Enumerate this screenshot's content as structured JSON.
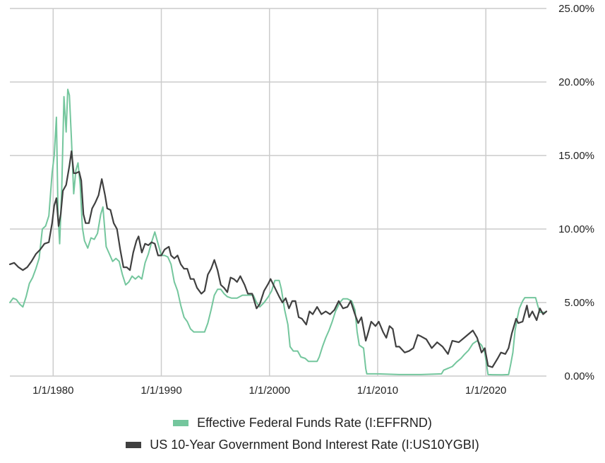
{
  "chart_data": {
    "type": "line",
    "title": "",
    "xlabel": "",
    "ylabel": "",
    "x_range": [
      1976.0,
      2025.6
    ],
    "ylim": [
      0,
      25
    ],
    "grid": true,
    "legend_position": "bottom",
    "x_ticks": [
      {
        "value": 1980,
        "label": "1/1/1980"
      },
      {
        "value": 1990,
        "label": "1/1/1990"
      },
      {
        "value": 2000,
        "label": "1/1/2000"
      },
      {
        "value": 2010,
        "label": "1/1/2010"
      },
      {
        "value": 2020,
        "label": "1/1/2020"
      }
    ],
    "y_ticks": [
      {
        "value": 0,
        "label": "0.00%"
      },
      {
        "value": 5,
        "label": "5.00%"
      },
      {
        "value": 10,
        "label": "10.00%"
      },
      {
        "value": 15,
        "label": "15.00%"
      },
      {
        "value": 20,
        "label": "20.00%"
      },
      {
        "value": 25,
        "label": "25.00%"
      }
    ],
    "series": [
      {
        "name": "Effective Federal Funds Rate (I:EFFRND)",
        "color": "#74c69d",
        "points": [
          [
            1976.0,
            5.0
          ],
          [
            1976.3,
            5.3
          ],
          [
            1976.6,
            5.2
          ],
          [
            1976.9,
            4.9
          ],
          [
            1977.2,
            4.7
          ],
          [
            1977.5,
            5.4
          ],
          [
            1977.8,
            6.3
          ],
          [
            1978.1,
            6.7
          ],
          [
            1978.4,
            7.3
          ],
          [
            1978.7,
            8.0
          ],
          [
            1979.0,
            10.0
          ],
          [
            1979.3,
            10.2
          ],
          [
            1979.6,
            10.9
          ],
          [
            1979.9,
            13.8
          ],
          [
            1980.1,
            15.0
          ],
          [
            1980.3,
            17.6
          ],
          [
            1980.45,
            11.0
          ],
          [
            1980.6,
            9.0
          ],
          [
            1980.8,
            12.8
          ],
          [
            1981.0,
            19.0
          ],
          [
            1981.2,
            16.6
          ],
          [
            1981.35,
            19.5
          ],
          [
            1981.5,
            19.1
          ],
          [
            1981.7,
            16.0
          ],
          [
            1981.9,
            12.4
          ],
          [
            1982.1,
            14.0
          ],
          [
            1982.3,
            14.5
          ],
          [
            1982.5,
            13.0
          ],
          [
            1982.7,
            10.1
          ],
          [
            1982.9,
            9.2
          ],
          [
            1983.2,
            8.7
          ],
          [
            1983.5,
            9.4
          ],
          [
            1983.8,
            9.3
          ],
          [
            1984.1,
            9.7
          ],
          [
            1984.4,
            11.0
          ],
          [
            1984.6,
            11.5
          ],
          [
            1984.9,
            8.8
          ],
          [
            1985.2,
            8.3
          ],
          [
            1985.5,
            7.8
          ],
          [
            1985.8,
            8.0
          ],
          [
            1986.1,
            7.8
          ],
          [
            1986.4,
            6.9
          ],
          [
            1986.7,
            6.2
          ],
          [
            1987.0,
            6.4
          ],
          [
            1987.3,
            6.8
          ],
          [
            1987.6,
            6.6
          ],
          [
            1987.9,
            6.8
          ],
          [
            1988.2,
            6.6
          ],
          [
            1988.5,
            7.7
          ],
          [
            1988.8,
            8.3
          ],
          [
            1989.1,
            9.1
          ],
          [
            1989.4,
            9.8
          ],
          [
            1989.7,
            9.0
          ],
          [
            1990.0,
            8.2
          ],
          [
            1990.3,
            8.2
          ],
          [
            1990.6,
            8.1
          ],
          [
            1990.9,
            7.6
          ],
          [
            1991.2,
            6.4
          ],
          [
            1991.5,
            5.8
          ],
          [
            1991.8,
            4.8
          ],
          [
            1992.1,
            4.0
          ],
          [
            1992.4,
            3.7
          ],
          [
            1992.7,
            3.2
          ],
          [
            1993.0,
            3.0
          ],
          [
            1993.5,
            3.0
          ],
          [
            1994.0,
            3.0
          ],
          [
            1994.3,
            3.6
          ],
          [
            1994.6,
            4.5
          ],
          [
            1994.9,
            5.5
          ],
          [
            1995.2,
            5.9
          ],
          [
            1995.5,
            5.9
          ],
          [
            1995.8,
            5.6
          ],
          [
            1996.1,
            5.4
          ],
          [
            1996.5,
            5.3
          ],
          [
            1997.0,
            5.3
          ],
          [
            1997.5,
            5.5
          ],
          [
            1998.0,
            5.5
          ],
          [
            1998.5,
            5.5
          ],
          [
            1998.8,
            5.0
          ],
          [
            1999.1,
            4.7
          ],
          [
            1999.5,
            5.0
          ],
          [
            1999.9,
            5.4
          ],
          [
            2000.2,
            5.8
          ],
          [
            2000.5,
            6.5
          ],
          [
            2000.9,
            6.5
          ],
          [
            2001.1,
            5.9
          ],
          [
            2001.4,
            4.5
          ],
          [
            2001.7,
            3.5
          ],
          [
            2001.9,
            2.0
          ],
          [
            2002.2,
            1.7
          ],
          [
            2002.6,
            1.7
          ],
          [
            2002.9,
            1.3
          ],
          [
            2003.3,
            1.2
          ],
          [
            2003.6,
            1.0
          ],
          [
            2004.0,
            1.0
          ],
          [
            2004.4,
            1.0
          ],
          [
            2004.6,
            1.3
          ],
          [
            2004.9,
            2.0
          ],
          [
            2005.2,
            2.6
          ],
          [
            2005.5,
            3.1
          ],
          [
            2005.8,
            3.7
          ],
          [
            2006.1,
            4.4
          ],
          [
            2006.5,
            5.0
          ],
          [
            2006.8,
            5.25
          ],
          [
            2007.2,
            5.25
          ],
          [
            2007.6,
            5.1
          ],
          [
            2007.9,
            4.5
          ],
          [
            2008.1,
            3.0
          ],
          [
            2008.3,
            2.1
          ],
          [
            2008.7,
            1.9
          ],
          [
            2008.9,
            0.5
          ],
          [
            2009.0,
            0.15
          ],
          [
            2010.0,
            0.15
          ],
          [
            2012.0,
            0.1
          ],
          [
            2014.0,
            0.1
          ],
          [
            2015.9,
            0.15
          ],
          [
            2016.1,
            0.4
          ],
          [
            2016.9,
            0.65
          ],
          [
            2017.3,
            0.95
          ],
          [
            2017.7,
            1.2
          ],
          [
            2018.0,
            1.45
          ],
          [
            2018.4,
            1.75
          ],
          [
            2018.8,
            2.2
          ],
          [
            2019.2,
            2.4
          ],
          [
            2019.6,
            2.1
          ],
          [
            2019.9,
            1.6
          ],
          [
            2020.2,
            0.1
          ],
          [
            2020.6,
            0.09
          ],
          [
            2021.5,
            0.08
          ],
          [
            2022.1,
            0.1
          ],
          [
            2022.3,
            0.8
          ],
          [
            2022.5,
            1.6
          ],
          [
            2022.7,
            3.1
          ],
          [
            2022.9,
            3.9
          ],
          [
            2023.1,
            4.6
          ],
          [
            2023.4,
            5.1
          ],
          [
            2023.6,
            5.33
          ],
          [
            2024.0,
            5.33
          ],
          [
            2024.6,
            5.33
          ],
          [
            2024.8,
            4.8
          ],
          [
            2025.0,
            4.33
          ],
          [
            2025.5,
            4.33
          ]
        ]
      },
      {
        "name": "US 10-Year Government Bond Interest Rate (I:US10YGBI)",
        "color": "#404040",
        "points": [
          [
            1976.0,
            7.6
          ],
          [
            1976.4,
            7.7
          ],
          [
            1976.8,
            7.4
          ],
          [
            1977.2,
            7.2
          ],
          [
            1977.6,
            7.4
          ],
          [
            1978.0,
            7.8
          ],
          [
            1978.4,
            8.3
          ],
          [
            1978.8,
            8.6
          ],
          [
            1979.2,
            9.0
          ],
          [
            1979.6,
            9.1
          ],
          [
            1979.9,
            10.4
          ],
          [
            1980.1,
            11.6
          ],
          [
            1980.3,
            12.1
          ],
          [
            1980.5,
            10.2
          ],
          [
            1980.7,
            11.0
          ],
          [
            1980.9,
            12.6
          ],
          [
            1981.2,
            13.0
          ],
          [
            1981.5,
            14.3
          ],
          [
            1981.7,
            15.3
          ],
          [
            1981.9,
            13.8
          ],
          [
            1982.1,
            13.8
          ],
          [
            1982.4,
            13.9
          ],
          [
            1982.6,
            13.3
          ],
          [
            1982.8,
            11.0
          ],
          [
            1983.0,
            10.4
          ],
          [
            1983.3,
            10.4
          ],
          [
            1983.6,
            11.4
          ],
          [
            1983.9,
            11.8
          ],
          [
            1984.2,
            12.3
          ],
          [
            1984.5,
            13.4
          ],
          [
            1984.8,
            12.3
          ],
          [
            1985.0,
            11.4
          ],
          [
            1985.3,
            11.3
          ],
          [
            1985.6,
            10.4
          ],
          [
            1985.9,
            10.0
          ],
          [
            1986.2,
            8.6
          ],
          [
            1986.5,
            7.4
          ],
          [
            1986.8,
            7.4
          ],
          [
            1987.1,
            7.2
          ],
          [
            1987.4,
            8.4
          ],
          [
            1987.7,
            9.2
          ],
          [
            1987.9,
            9.5
          ],
          [
            1988.2,
            8.4
          ],
          [
            1988.5,
            9.0
          ],
          [
            1988.8,
            8.9
          ],
          [
            1989.1,
            9.1
          ],
          [
            1989.4,
            9.0
          ],
          [
            1989.7,
            8.2
          ],
          [
            1990.0,
            8.2
          ],
          [
            1990.3,
            8.6
          ],
          [
            1990.7,
            8.8
          ],
          [
            1990.9,
            8.2
          ],
          [
            1991.2,
            8.0
          ],
          [
            1991.5,
            8.2
          ],
          [
            1991.8,
            7.6
          ],
          [
            1992.1,
            7.3
          ],
          [
            1992.4,
            7.3
          ],
          [
            1992.7,
            6.6
          ],
          [
            1993.0,
            6.6
          ],
          [
            1993.3,
            6.0
          ],
          [
            1993.7,
            5.6
          ],
          [
            1994.0,
            5.8
          ],
          [
            1994.3,
            6.9
          ],
          [
            1994.6,
            7.3
          ],
          [
            1994.9,
            7.9
          ],
          [
            1995.2,
            7.2
          ],
          [
            1995.5,
            6.2
          ],
          [
            1995.8,
            6.0
          ],
          [
            1996.1,
            5.7
          ],
          [
            1996.4,
            6.7
          ],
          [
            1996.7,
            6.6
          ],
          [
            1997.0,
            6.4
          ],
          [
            1997.3,
            6.8
          ],
          [
            1997.7,
            6.2
          ],
          [
            1998.0,
            5.6
          ],
          [
            1998.4,
            5.6
          ],
          [
            1998.8,
            4.6
          ],
          [
            1999.1,
            4.9
          ],
          [
            1999.5,
            5.8
          ],
          [
            1999.9,
            6.3
          ],
          [
            2000.1,
            6.6
          ],
          [
            2000.5,
            6.0
          ],
          [
            2000.9,
            5.4
          ],
          [
            2001.2,
            5.0
          ],
          [
            2001.5,
            5.3
          ],
          [
            2001.8,
            4.6
          ],
          [
            2002.1,
            5.1
          ],
          [
            2002.4,
            5.1
          ],
          [
            2002.7,
            4.0
          ],
          [
            2003.0,
            3.9
          ],
          [
            2003.4,
            3.5
          ],
          [
            2003.7,
            4.4
          ],
          [
            2004.0,
            4.2
          ],
          [
            2004.4,
            4.7
          ],
          [
            2004.8,
            4.2
          ],
          [
            2005.2,
            4.4
          ],
          [
            2005.6,
            4.2
          ],
          [
            2006.0,
            4.5
          ],
          [
            2006.4,
            5.1
          ],
          [
            2006.8,
            4.6
          ],
          [
            2007.2,
            4.7
          ],
          [
            2007.5,
            5.1
          ],
          [
            2007.9,
            4.2
          ],
          [
            2008.2,
            3.6
          ],
          [
            2008.5,
            4.0
          ],
          [
            2008.9,
            2.4
          ],
          [
            2009.1,
            2.9
          ],
          [
            2009.4,
            3.7
          ],
          [
            2009.8,
            3.4
          ],
          [
            2010.1,
            3.7
          ],
          [
            2010.5,
            3.0
          ],
          [
            2010.8,
            2.6
          ],
          [
            2011.1,
            3.4
          ],
          [
            2011.4,
            3.2
          ],
          [
            2011.7,
            2.0
          ],
          [
            2012.0,
            2.0
          ],
          [
            2012.5,
            1.6
          ],
          [
            2012.9,
            1.7
          ],
          [
            2013.3,
            1.9
          ],
          [
            2013.7,
            2.8
          ],
          [
            2014.0,
            2.7
          ],
          [
            2014.5,
            2.5
          ],
          [
            2015.0,
            1.9
          ],
          [
            2015.5,
            2.3
          ],
          [
            2016.0,
            2.0
          ],
          [
            2016.5,
            1.5
          ],
          [
            2016.9,
            2.4
          ],
          [
            2017.5,
            2.3
          ],
          [
            2018.0,
            2.6
          ],
          [
            2018.8,
            3.1
          ],
          [
            2019.2,
            2.6
          ],
          [
            2019.6,
            1.6
          ],
          [
            2019.9,
            1.9
          ],
          [
            2020.2,
            0.7
          ],
          [
            2020.6,
            0.6
          ],
          [
            2021.1,
            1.2
          ],
          [
            2021.4,
            1.6
          ],
          [
            2021.8,
            1.5
          ],
          [
            2022.1,
            1.9
          ],
          [
            2022.4,
            2.9
          ],
          [
            2022.8,
            3.9
          ],
          [
            2023.0,
            3.6
          ],
          [
            2023.4,
            3.7
          ],
          [
            2023.8,
            4.8
          ],
          [
            2024.0,
            4.0
          ],
          [
            2024.3,
            4.4
          ],
          [
            2024.7,
            3.8
          ],
          [
            2025.0,
            4.6
          ],
          [
            2025.3,
            4.2
          ],
          [
            2025.6,
            4.4
          ]
        ]
      }
    ]
  }
}
